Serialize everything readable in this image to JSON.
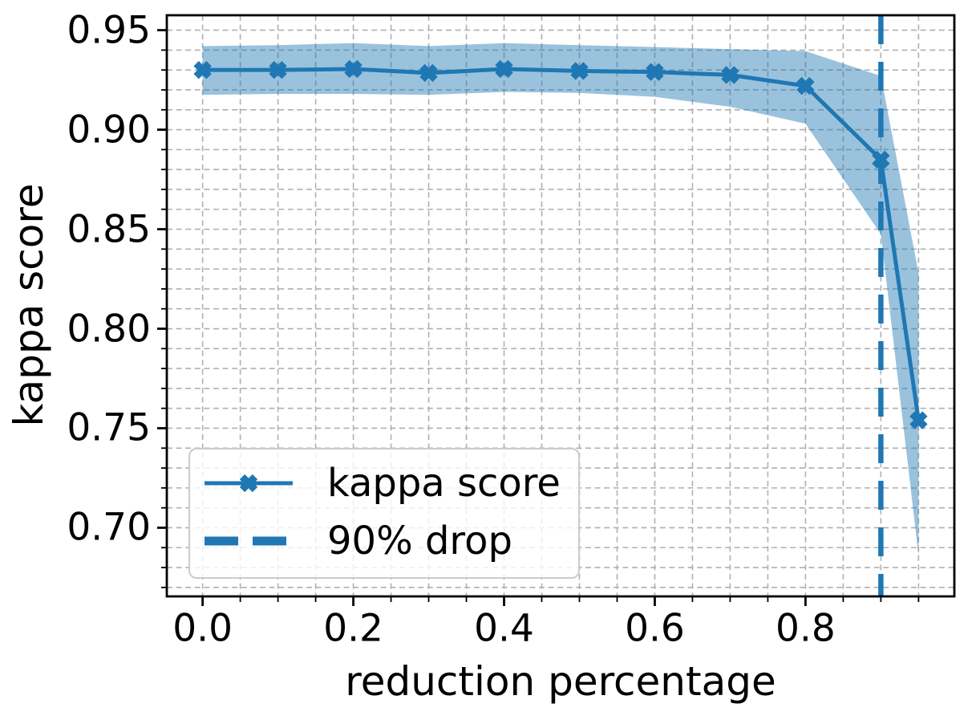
{
  "chart_data": {
    "type": "line",
    "title": "",
    "xlabel": "reduction percentage",
    "ylabel": "kappa score",
    "x": [
      0.0,
      0.1,
      0.2,
      0.3,
      0.4,
      0.5,
      0.6,
      0.7,
      0.8,
      0.9,
      0.95
    ],
    "series": [
      {
        "name": "kappa score",
        "values": [
          0.93,
          0.93,
          0.9305,
          0.9285,
          0.9305,
          0.9295,
          0.929,
          0.9275,
          0.922,
          0.885,
          0.754
        ]
      }
    ],
    "band": {
      "series": "kappa score",
      "upper": [
        0.942,
        0.9425,
        0.9435,
        0.942,
        0.9435,
        0.9425,
        0.9415,
        0.9405,
        0.9395,
        0.927,
        0.828
      ],
      "lower": [
        0.9175,
        0.918,
        0.918,
        0.9175,
        0.919,
        0.9185,
        0.9165,
        0.9115,
        0.903,
        0.8475,
        0.686
      ]
    },
    "vline": {
      "x": 0.9,
      "name": "90% drop"
    },
    "marker": "X",
    "xticks": {
      "values": [
        0.0,
        0.2,
        0.4,
        0.6,
        0.8
      ],
      "labels": [
        "0.0",
        "0.2",
        "0.4",
        "0.6",
        "0.8"
      ]
    },
    "yticks": {
      "values": [
        0.7,
        0.75,
        0.8,
        0.85,
        0.9,
        0.95
      ],
      "labels": [
        "0.70",
        "0.75",
        "0.80",
        "0.85",
        "0.90",
        "0.95"
      ]
    },
    "minor_ticks": {
      "x_step": 0.05,
      "y_step": 0.01
    },
    "xlim": [
      -0.0475,
      0.9975
    ],
    "ylim": [
      0.6655,
      0.9575
    ],
    "grid": {
      "which": "both",
      "style": "dashed"
    },
    "legend_position": "lower left"
  },
  "legend": {
    "items": [
      {
        "label": "kappa score",
        "sample": "line-with-x-marker"
      },
      {
        "label": "90% drop",
        "sample": "thick-dashed-line"
      }
    ]
  },
  "colors": {
    "accent": "#1f77b4",
    "band_alpha": 0.45,
    "grid": "#b0b0b0",
    "spine": "#000000",
    "text": "#000000",
    "legend_border": "#cccccc",
    "background": "#ffffff"
  }
}
